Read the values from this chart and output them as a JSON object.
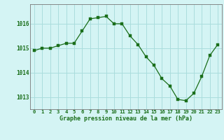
{
  "x": [
    0,
    1,
    2,
    3,
    4,
    5,
    6,
    7,
    8,
    9,
    10,
    11,
    12,
    13,
    14,
    15,
    16,
    17,
    18,
    19,
    20,
    21,
    22,
    23
  ],
  "y": [
    1014.9,
    1015.0,
    1015.0,
    1015.1,
    1015.2,
    1015.2,
    1015.7,
    1016.2,
    1016.25,
    1016.3,
    1016.0,
    1016.0,
    1015.5,
    1015.15,
    1014.65,
    1014.3,
    1013.75,
    1013.45,
    1012.9,
    1012.85,
    1013.15,
    1013.85,
    1014.7,
    1015.15
  ],
  "line_color": "#1a6e1a",
  "marker_color": "#1a6e1a",
  "bg_color": "#d4f4f4",
  "grid_color": "#aadddd",
  "border_color": "#777777",
  "xlabel": "Graphe pression niveau de la mer (hPa)",
  "xlabel_color": "#1a6e1a",
  "tick_label_color": "#1a6e1a",
  "ylim": [
    1012.5,
    1016.8
  ],
  "yticks": [
    1013,
    1014,
    1015,
    1016
  ],
  "xlim": [
    -0.5,
    23.5
  ],
  "xticks": [
    0,
    1,
    2,
    3,
    4,
    5,
    6,
    7,
    8,
    9,
    10,
    11,
    12,
    13,
    14,
    15,
    16,
    17,
    18,
    19,
    20,
    21,
    22,
    23
  ],
  "xtick_labels": [
    "0",
    "1",
    "2",
    "3",
    "4",
    "5",
    "6",
    "7",
    "8",
    "9",
    "10",
    "11",
    "12",
    "13",
    "14",
    "15",
    "16",
    "17",
    "18",
    "19",
    "20",
    "21",
    "22",
    "23"
  ]
}
